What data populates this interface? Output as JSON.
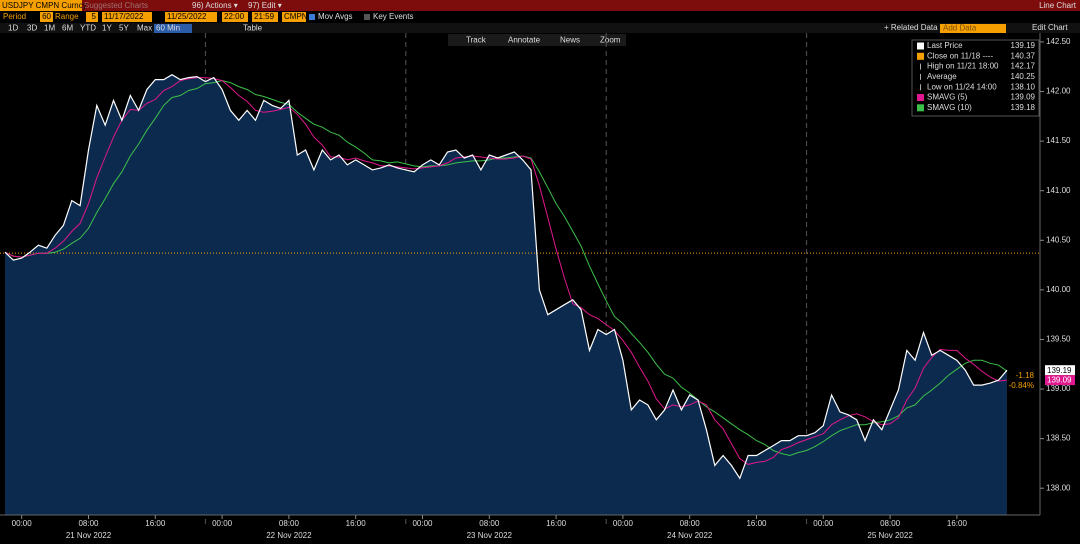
{
  "header": {
    "security": "USDJPY CMPN Curncy",
    "hint": "Suggested Charts",
    "actions": "96) Actions ▾",
    "edit": "97) Edit ▾",
    "view": "Line Chart"
  },
  "controls": {
    "period_label": "Period",
    "period": "60",
    "range_label": "Range",
    "range": "5",
    "start_date": "11/17/2022",
    "end_date": "11/25/2022",
    "start_time": "22:00",
    "end_time": "21:59",
    "source": "CMPN",
    "mov_avgs": "Mov Avgs",
    "key_events": "Key Events"
  },
  "periods": [
    "1D",
    "3D",
    "1M",
    "6M",
    "YTD",
    "1Y",
    "5Y",
    "Max",
    "60 Min",
    "Table"
  ],
  "related_data": "+ Related Data ▾",
  "add_data": "Add Data",
  "edit_chart": "Edit Chart",
  "chart_tools": [
    "Track",
    "Annotate",
    "News",
    "Zoom"
  ],
  "chart_data": {
    "type": "line",
    "categories": [
      null,
      null,
      "00:00",
      null,
      null,
      null,
      null,
      null,
      null,
      null,
      "08:00",
      null,
      null,
      null,
      null,
      null,
      null,
      null,
      "16:00",
      null,
      null,
      null,
      null,
      null,
      null,
      null,
      "00:00",
      null,
      null,
      null,
      null,
      null,
      null,
      null,
      "08:00",
      null,
      null,
      null,
      null,
      null,
      null,
      null,
      "16:00",
      null,
      null,
      null,
      null,
      null,
      null,
      null,
      "00:00",
      null,
      null,
      null,
      null,
      null,
      null,
      null,
      "08:00",
      null,
      null,
      null,
      null,
      null,
      null,
      null,
      "16:00",
      null,
      null,
      null,
      null,
      null,
      null,
      null,
      "00:00",
      null,
      null,
      null,
      null,
      null,
      null,
      null,
      "08:00",
      null,
      null,
      null,
      null,
      null,
      null,
      null,
      "16:00",
      null,
      null,
      null,
      null,
      null,
      null,
      null,
      "00:00",
      null,
      null,
      null,
      null,
      null,
      null,
      null,
      "08:00",
      null,
      null,
      null,
      null,
      null,
      null,
      null,
      "16:00",
      null,
      null,
      null,
      null,
      null,
      null
    ],
    "date_labels": [
      "21 Nov 2022",
      "22 Nov 2022",
      "23 Nov 2022",
      "24 Nov 2022",
      "25 Nov 2022"
    ],
    "area_color": "#0c2a4e",
    "series": [
      {
        "name": "Last Price",
        "color": "#ffffff",
        "last": 139.19,
        "values": [
          140.38,
          140.3,
          140.32,
          140.38,
          140.45,
          140.42,
          140.55,
          140.65,
          140.9,
          140.85,
          141.41,
          141.86,
          141.66,
          141.91,
          141.71,
          141.96,
          141.81,
          142.02,
          142.12,
          142.12,
          142.17,
          142.12,
          142.14,
          142.15,
          142.1,
          142.14,
          142.02,
          141.81,
          141.71,
          141.81,
          141.71,
          141.91,
          141.86,
          141.83,
          141.91,
          141.36,
          141.41,
          141.21,
          141.41,
          141.31,
          141.36,
          141.26,
          141.31,
          141.26,
          141.21,
          141.23,
          141.26,
          141.23,
          141.21,
          141.19,
          141.26,
          141.31,
          141.26,
          141.39,
          141.41,
          141.33,
          141.36,
          141.21,
          141.36,
          141.33,
          141.36,
          141.39,
          141.31,
          141.21,
          140.0,
          139.75,
          139.8,
          139.85,
          139.9,
          139.8,
          139.39,
          139.6,
          139.55,
          139.6,
          139.29,
          138.79,
          138.89,
          138.84,
          138.69,
          138.79,
          138.99,
          138.79,
          138.94,
          138.89,
          138.59,
          138.23,
          138.33,
          138.23,
          138.1,
          138.33,
          138.33,
          138.38,
          138.43,
          138.48,
          138.48,
          138.53,
          138.53,
          138.56,
          138.63,
          138.94,
          138.77,
          138.74,
          138.69,
          138.48,
          138.69,
          138.59,
          138.79,
          138.99,
          139.39,
          139.29,
          139.57,
          139.34,
          139.39,
          139.34,
          139.29,
          139.19,
          139.04,
          139.04,
          139.06,
          139.09,
          139.19
        ]
      },
      {
        "name": "SMAVG (5)",
        "color": "#e0178e",
        "last": 139.09,
        "values": [
          140.38,
          140.34,
          140.33,
          140.35,
          140.37,
          140.37,
          140.42,
          140.49,
          140.59,
          140.67,
          140.87,
          141.13,
          141.34,
          141.54,
          141.71,
          141.82,
          141.81,
          141.88,
          141.92,
          142.01,
          142.05,
          142.11,
          142.13,
          142.14,
          142.14,
          142.13,
          142.11,
          142.04,
          141.96,
          141.9,
          141.81,
          141.79,
          141.8,
          141.82,
          141.84,
          141.77,
          141.67,
          141.54,
          141.46,
          141.34,
          141.34,
          141.31,
          141.33,
          141.3,
          141.28,
          141.25,
          141.25,
          141.24,
          141.23,
          141.22,
          141.23,
          141.24,
          141.25,
          141.28,
          141.33,
          141.34,
          141.35,
          141.34,
          141.33,
          141.32,
          141.32,
          141.33,
          141.35,
          141.32,
          141.05,
          140.73,
          140.41,
          140.12,
          139.86,
          139.82,
          139.75,
          139.71,
          139.65,
          139.59,
          139.49,
          139.37,
          139.22,
          139.08,
          138.9,
          138.8,
          138.84,
          138.82,
          138.84,
          138.88,
          138.84,
          138.69,
          138.6,
          138.45,
          138.3,
          138.24,
          138.26,
          138.27,
          138.31,
          138.39,
          138.42,
          138.46,
          138.49,
          138.52,
          138.55,
          138.64,
          138.69,
          138.73,
          138.75,
          138.72,
          138.67,
          138.64,
          138.65,
          138.71,
          138.89,
          139.01,
          139.21,
          139.32,
          139.4,
          139.39,
          139.39,
          139.31,
          139.25,
          139.18,
          139.12,
          139.08,
          139.09
        ]
      },
      {
        "name": "SMAVG (10)",
        "color": "#3cc04a",
        "last": 139.18,
        "values": [
          140.38,
          140.34,
          140.33,
          140.35,
          140.37,
          140.37,
          140.38,
          140.41,
          140.47,
          140.52,
          140.62,
          140.78,
          140.92,
          141.07,
          141.19,
          141.35,
          141.47,
          141.61,
          141.73,
          141.86,
          141.94,
          141.96,
          142.01,
          142.03,
          142.08,
          142.09,
          142.11,
          142.09,
          142.05,
          142.02,
          141.97,
          141.95,
          141.92,
          141.89,
          141.87,
          141.79,
          141.73,
          141.67,
          141.64,
          141.59,
          141.56,
          141.49,
          141.44,
          141.38,
          141.31,
          141.3,
          141.28,
          141.29,
          141.27,
          141.25,
          141.24,
          141.25,
          141.25,
          141.26,
          141.28,
          141.29,
          141.3,
          141.3,
          141.31,
          141.33,
          141.33,
          141.34,
          141.35,
          141.33,
          141.19,
          141.03,
          140.87,
          140.74,
          140.59,
          140.44,
          140.24,
          140.06,
          139.89,
          139.73,
          139.66,
          139.56,
          139.47,
          139.37,
          139.25,
          139.15,
          139.11,
          139.02,
          138.96,
          138.89,
          138.82,
          138.77,
          138.71,
          138.65,
          138.59,
          138.54,
          138.48,
          138.44,
          138.38,
          138.35,
          138.33,
          138.36,
          138.38,
          138.42,
          138.47,
          138.53,
          138.58,
          138.61,
          138.64,
          138.64,
          138.66,
          138.67,
          138.69,
          138.73,
          138.81,
          138.84,
          138.93,
          138.99,
          139.06,
          139.14,
          139.2,
          139.26,
          139.29,
          139.29,
          139.26,
          139.24,
          139.18
        ]
      }
    ],
    "stats": [
      {
        "label": "Close on 11/18 ----",
        "value": 140.37,
        "color": "#f5a000"
      },
      {
        "label": "High on 11/21 18:00",
        "value": 142.17
      },
      {
        "label": "Average",
        "value": 140.25
      },
      {
        "label": "Low on 11/24 14:00",
        "value": {
          "value": 138.1,
          "label": "138.10"
        }
      }
    ],
    "change": -1.18,
    "change_pct": {
      "value": -0.84,
      "label": "-0.84%"
    },
    "ylim": [
      137.73,
      142.59
    ],
    "yticks": [
      {
        "value": 138,
        "label": "138.00"
      },
      {
        "value": 138.5,
        "label": "138.50"
      },
      {
        "value": 139,
        "label": "139.00"
      },
      {
        "value": 139.5,
        "label": "139.50"
      },
      {
        "value": 140,
        "label": "140.00"
      },
      {
        "value": 140.5,
        "label": "140.50"
      },
      {
        "value": 141,
        "label": "141.00"
      },
      {
        "value": 141.5,
        "label": "141.50"
      },
      {
        "value": 142,
        "label": "142.00"
      },
      {
        "value": 142.5,
        "label": "142.50"
      }
    ],
    "grid": false
  }
}
